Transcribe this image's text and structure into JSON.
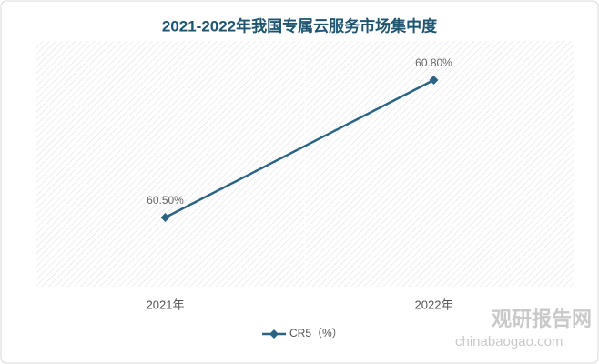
{
  "chart_data": {
    "type": "line",
    "title": "2021-2022年我国专属云服务市场集中度",
    "categories": [
      "2021年",
      "2022年"
    ],
    "series": [
      {
        "name": "CR5（%）",
        "color": "#2a6482",
        "values": [
          60.5,
          60.8
        ],
        "value_labels": [
          "60.50%",
          "60.80%"
        ]
      }
    ]
  },
  "watermark": {
    "name": "观研报告网",
    "url": "chinabaogao.com"
  }
}
